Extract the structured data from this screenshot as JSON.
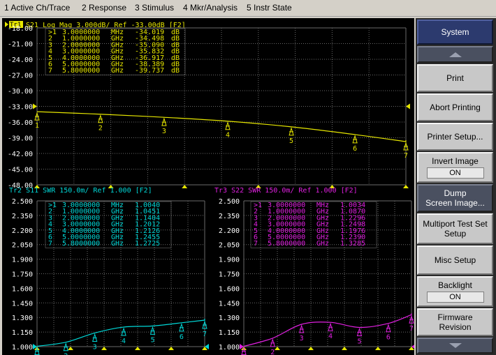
{
  "menu": [
    {
      "label": "1 Active Ch/Trace"
    },
    {
      "label": "2 Response"
    },
    {
      "label": "3 Stimulus"
    },
    {
      "label": "4 Mkr/Analysis"
    },
    {
      "label": "5 Instr State"
    }
  ],
  "softkeys": {
    "title": "System",
    "print": "Print",
    "abort": "Abort Printing",
    "printer_setup": "Printer Setup...",
    "invert_label": "Invert Image",
    "invert_value": "ON",
    "dump_line1": "Dump",
    "dump_line2": "Screen Image...",
    "multiport_line1": "Multiport Test Set",
    "multiport_line2": "Setup",
    "misc": "Misc Setup",
    "backlight_label": "Backlight",
    "backlight_value": "ON",
    "firmware_line1": "Firmware",
    "firmware_line2": "Revision"
  },
  "colors": {
    "background": "#000000",
    "grid": "#6a6a6a",
    "trace1": "#e6e600",
    "trace2": "#00d8d8",
    "trace3": "#e020e0",
    "marker_tr1_badge": "#e6e600"
  },
  "chart_data": [
    {
      "type": "line",
      "badge": "Tr1",
      "title": "S21 Log Mag 3.000dB/ Ref -33.00dB [F2]",
      "ytick_labels": [
        "-18.00",
        "-21.00",
        "-24.00",
        "-27.00",
        "-30.00",
        "-33.00",
        "-36.00",
        "-39.00",
        "-42.00",
        "-45.00",
        "-48.00"
      ],
      "ylim": [
        -48,
        -18
      ],
      "x_ghz": [
        0.003,
        1,
        2,
        3,
        4,
        5,
        5.8
      ],
      "values": [
        -34.019,
        -34.498,
        -35.09,
        -35.832,
        -36.917,
        -38.389,
        -39.737
      ],
      "marker_ids": [
        "1",
        "2",
        "3",
        "4",
        "5",
        "6",
        "7"
      ],
      "marker_table": [
        {
          "id": ">1",
          "freq": "3.0000000",
          "unit": "MHz",
          "value": "-34.019",
          "vunit": "dB"
        },
        {
          "id": "2",
          "freq": "1.0000000",
          "unit": "GHz",
          "value": "-34.498",
          "vunit": "dB"
        },
        {
          "id": "3",
          "freq": "2.0000000",
          "unit": "GHz",
          "value": "-35.090",
          "vunit": "dB"
        },
        {
          "id": "4",
          "freq": "3.0000000",
          "unit": "GHz",
          "value": "-35.832",
          "vunit": "dB"
        },
        {
          "id": "5",
          "freq": "4.0000000",
          "unit": "GHz",
          "value": "-36.917",
          "vunit": "dB"
        },
        {
          "id": "6",
          "freq": "5.0000000",
          "unit": "GHz",
          "value": "-38.389",
          "vunit": "dB"
        },
        {
          "id": "7",
          "freq": "5.8000000",
          "unit": "GHz",
          "value": "-39.737",
          "vunit": "dB"
        }
      ]
    },
    {
      "type": "line",
      "badge": "",
      "title": "Tr2 S11 SWR 150.0m/ Ref 1.000 [F2]",
      "ytick_labels": [
        "2.500",
        "2.350",
        "2.200",
        "2.050",
        "1.900",
        "1.750",
        "1.600",
        "1.450",
        "1.300",
        "1.150",
        "1.000"
      ],
      "ylim": [
        1.0,
        2.5
      ],
      "x_ghz": [
        0.003,
        1,
        2,
        3,
        4,
        5,
        5.8
      ],
      "values": [
        1.004,
        1.0451,
        1.1404,
        1.2012,
        1.2126,
        1.2455,
        1.2725
      ],
      "marker_ids": [
        "1",
        "2",
        "3",
        "4",
        "5",
        "6",
        "7"
      ],
      "marker_table": [
        {
          "id": ">1",
          "freq": "3.0000000",
          "unit": "MHz",
          "value": "1.0040"
        },
        {
          "id": "2",
          "freq": "1.0000000",
          "unit": "GHz",
          "value": "1.0451"
        },
        {
          "id": "3",
          "freq": "2.0000000",
          "unit": "GHz",
          "value": "1.1404"
        },
        {
          "id": "4",
          "freq": "3.0000000",
          "unit": "GHz",
          "value": "1.2012"
        },
        {
          "id": "5",
          "freq": "4.0000000",
          "unit": "GHz",
          "value": "1.2126"
        },
        {
          "id": "6",
          "freq": "5.0000000",
          "unit": "GHz",
          "value": "1.2455"
        },
        {
          "id": "7",
          "freq": "5.8000000",
          "unit": "GHz",
          "value": "1.2725"
        }
      ]
    },
    {
      "type": "line",
      "badge": "",
      "title": "Tr3 S22 SWR 150.0m/ Ref 1.000 [F2]",
      "ytick_labels": [
        "2.500",
        "2.350",
        "2.200",
        "2.050",
        "1.900",
        "1.750",
        "1.600",
        "1.450",
        "1.300",
        "1.150",
        "1.000"
      ],
      "ylim": [
        1.0,
        2.5
      ],
      "x_ghz": [
        0.003,
        1,
        2,
        3,
        4,
        5,
        5.8
      ],
      "values": [
        1.0034,
        1.087,
        1.2296,
        1.2498,
        1.1976,
        1.239,
        1.3285
      ],
      "marker_ids": [
        "1",
        "2",
        "3",
        "4",
        "5",
        "6",
        "7"
      ],
      "marker_table": [
        {
          "id": ">1",
          "freq": "3.0000000",
          "unit": "MHz",
          "value": "1.0034"
        },
        {
          "id": "2",
          "freq": "1.0000000",
          "unit": "GHz",
          "value": "1.0870"
        },
        {
          "id": "3",
          "freq": "2.0000000",
          "unit": "GHz",
          "value": "1.2296"
        },
        {
          "id": "4",
          "freq": "3.0000000",
          "unit": "GHz",
          "value": "1.2498"
        },
        {
          "id": "5",
          "freq": "4.0000000",
          "unit": "GHz",
          "value": "1.1976"
        },
        {
          "id": "6",
          "freq": "5.0000000",
          "unit": "GHz",
          "value": "1.2390"
        },
        {
          "id": "7",
          "freq": "5.8000000",
          "unit": "GHz",
          "value": "1.3285"
        }
      ]
    }
  ]
}
